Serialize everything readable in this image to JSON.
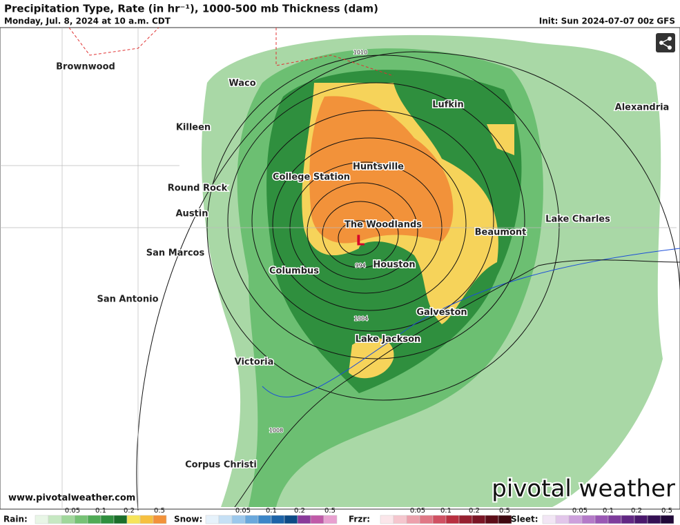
{
  "header": {
    "title": "Precipitation Type, Rate (in hr⁻¹), 1000-500 mb Thickness (dam)",
    "subtitle": "Monday, Jul. 8, 2024 at 10 a.m. CDT",
    "init": "Init: Sun 2024-07-07 00z GFS"
  },
  "map": {
    "cities": [
      "Brownwood",
      "Waco",
      "Killeen",
      "Lufkin",
      "Alexandria",
      "Huntsville",
      "College Station",
      "Round Rock",
      "Austin",
      "The Woodlands",
      "Beaumont",
      "Lake Charles",
      "San Marcos",
      "Columbus",
      "Houston",
      "San Antonio",
      "Galveston",
      "Lake Jackson",
      "Victoria",
      "Corpus Christi"
    ],
    "contours": [
      1010,
      994,
      1004,
      1008
    ],
    "low": "L"
  },
  "footer": {
    "url": "www.pivotalweather.com",
    "logo": "pivotal weather"
  },
  "legend": [
    {
      "label": "Rain:",
      "ticks": [
        0.05,
        0.1,
        0.2,
        0.5
      ]
    },
    {
      "label": "Snow:",
      "ticks": [
        0.05,
        0.1,
        0.2,
        0.5
      ]
    },
    {
      "label": "Frzr:",
      "ticks": [
        0.05,
        0.1,
        0.2,
        0.5
      ]
    },
    {
      "label": "Sleet:",
      "ticks": [
        0.05,
        0.1,
        0.2,
        0.5
      ]
    }
  ]
}
